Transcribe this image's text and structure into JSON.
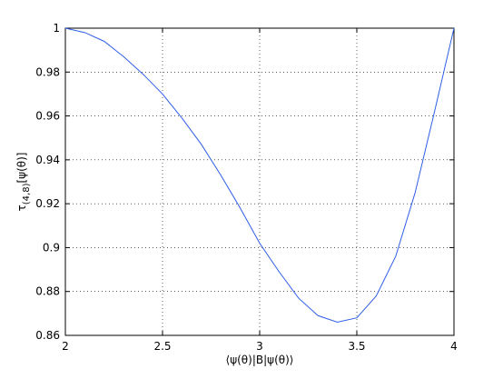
{
  "chart_data": {
    "type": "line",
    "xlabel": "⟨ψ(θ)|B|ψ(θ)⟩",
    "ylabel_parts": [
      "τ",
      "(4,8)",
      "[ψ(θ)]"
    ],
    "x": [
      2.0,
      2.1,
      2.2,
      2.3,
      2.4,
      2.5,
      2.6,
      2.7,
      2.8,
      2.9,
      3.0,
      3.1,
      3.2,
      3.3,
      3.4,
      3.5,
      3.6,
      3.7,
      3.8,
      3.9,
      4.0
    ],
    "series": [
      {
        "color": "#2f5ee8",
        "values": [
          1.0,
          0.998,
          0.994,
          0.987,
          0.979,
          0.97,
          0.959,
          0.947,
          0.933,
          0.918,
          0.902,
          0.889,
          0.877,
          0.869,
          0.866,
          0.868,
          0.878,
          0.896,
          0.925,
          0.962,
          1.0
        ]
      }
    ],
    "xlim": [
      2,
      4
    ],
    "xticks": [
      2,
      2.5,
      3,
      3.5,
      4
    ],
    "ylim": [
      0.86,
      1
    ],
    "yticks": [
      0.86,
      0.88,
      0.9,
      0.92,
      0.94,
      0.96,
      0.98,
      1
    ],
    "grid": true
  }
}
